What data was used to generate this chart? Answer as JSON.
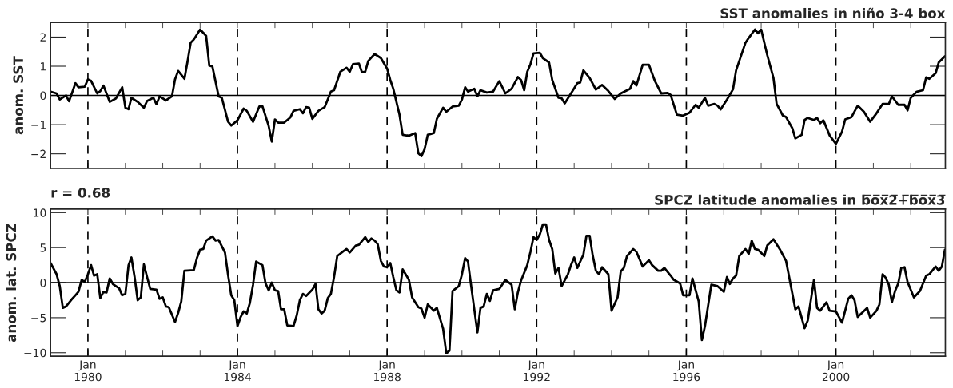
{
  "chart_data": [
    {
      "type": "line",
      "title": "SST anomalies in niño 3-4 box",
      "ylabel": "anom. SST",
      "x": [
        "1979-01",
        "1979-03",
        "1979-04",
        "1979-06",
        "1979-07",
        "1979-09",
        "1979-10",
        "1979-12",
        "1980-01",
        "1980-02",
        "1980-04",
        "1980-05",
        "1980-06",
        "1980-08",
        "1980-10",
        "1980-12",
        "1981-01",
        "1981-02",
        "1981-03",
        "1981-05",
        "1981-07",
        "1981-08",
        "1981-10",
        "1981-11",
        "1981-12",
        "1982-02",
        "1982-04",
        "1982-05",
        "1982-06",
        "1982-08",
        "1982-09",
        "1982-10",
        "1982-11",
        "1983-01",
        "1983-03",
        "1983-04",
        "1983-05",
        "1983-07",
        "1983-08",
        "1983-10",
        "1983-11",
        "1984-01",
        "1984-03",
        "1984-04",
        "1984-06",
        "1984-08",
        "1984-09",
        "1984-11",
        "1984-12",
        "1985-01",
        "1985-02",
        "1985-04",
        "1985-06",
        "1985-07",
        "1985-09",
        "1985-10",
        "1985-11",
        "1985-12",
        "1986-01",
        "1986-03",
        "1986-05",
        "1986-07",
        "1986-08",
        "1986-10",
        "1986-12",
        "1987-01",
        "1987-02",
        "1987-04",
        "1987-05",
        "1987-06",
        "1987-07",
        "1987-09",
        "1987-11",
        "1988-01",
        "1988-02",
        "1988-03",
        "1988-05",
        "1988-06",
        "1988-08",
        "1988-10",
        "1988-11",
        "1988-12",
        "1989-01",
        "1989-02",
        "1989-04",
        "1989-05",
        "1989-07",
        "1989-08",
        "1989-10",
        "1989-12",
        "1990-01",
        "1990-02",
        "1990-03",
        "1990-05",
        "1990-06",
        "1990-07",
        "1990-09",
        "1990-11",
        "1991-01",
        "1991-03",
        "1991-05",
        "1991-07",
        "1991-08",
        "1991-09",
        "1991-10",
        "1991-11",
        "1991-12",
        "1992-02",
        "1992-03",
        "1992-05",
        "1992-06",
        "1992-08",
        "1992-09",
        "1992-10",
        "1992-12",
        "1993-02",
        "1993-03",
        "1993-04",
        "1993-06",
        "1993-08",
        "1993-10",
        "1993-12",
        "1994-02",
        "1994-04",
        "1994-07",
        "1994-08",
        "1994-09",
        "1994-11",
        "1995-01",
        "1995-03",
        "1995-05",
        "1995-07",
        "1995-08",
        "1995-10",
        "1995-12",
        "1996-02",
        "1996-04",
        "1996-05",
        "1996-07",
        "1996-08",
        "1996-10",
        "1996-11",
        "1996-12",
        "1997-02",
        "1997-04",
        "1997-05",
        "1997-08",
        "1997-09",
        "1997-11",
        "1997-12",
        "1998-01",
        "1998-03",
        "1998-05",
        "1998-06",
        "1998-08",
        "1998-09",
        "1998-11",
        "1998-12",
        "1999-02",
        "1999-03",
        "1999-04",
        "1999-06",
        "1999-07",
        "1999-08",
        "1999-09",
        "1999-11",
        "2000-01",
        "2000-03",
        "2000-04",
        "2000-06",
        "2000-08",
        "2000-10",
        "2000-12",
        "2001-02",
        "2001-04",
        "2001-06",
        "2001-07",
        "2001-09",
        "2001-11",
        "2001-12",
        "2002-01",
        "2002-03",
        "2002-05",
        "2002-06",
        "2002-07",
        "2002-09",
        "2002-10",
        "2002-12"
      ],
      "series": [
        {
          "color": "#000000",
          "values": [
            0.13,
            0.07,
            -0.14,
            0,
            -0.2,
            0.42,
            0.28,
            0.3,
            0.55,
            0.5,
            0.07,
            0.15,
            0.34,
            -0.22,
            -0.1,
            0.28,
            -0.42,
            -0.47,
            -0.08,
            -0.22,
            -0.42,
            -0.19,
            -0.08,
            -0.3,
            -0.03,
            -0.17,
            -0.03,
            0.55,
            0.84,
            0.57,
            1.18,
            1.81,
            1.92,
            2.26,
            2.04,
            1.02,
            0.99,
            -0.03,
            -0.08,
            -0.9,
            -1.03,
            -0.85,
            -0.45,
            -0.53,
            -0.9,
            -0.38,
            -0.37,
            -1.05,
            -1.58,
            -0.82,
            -0.93,
            -0.93,
            -0.75,
            -0.53,
            -0.47,
            -0.61,
            -0.4,
            -0.42,
            -0.8,
            -0.53,
            -0.4,
            0.13,
            0.18,
            0.81,
            0.95,
            0.81,
            1.07,
            1.09,
            0.79,
            0.81,
            1.18,
            1.42,
            1.28,
            0.92,
            0.53,
            0.23,
            -0.66,
            -1.35,
            -1.38,
            -1.29,
            -1.98,
            -2.08,
            -1.84,
            -1.35,
            -1.29,
            -0.8,
            -0.42,
            -0.56,
            -0.38,
            -0.35,
            -0.14,
            0.28,
            0.13,
            0.23,
            -0.03,
            0.18,
            0.1,
            0.13,
            0.49,
            0.07,
            0.23,
            0.63,
            0.53,
            0.18,
            0.81,
            1.07,
            1.44,
            1.46,
            1.28,
            1.13,
            0.53,
            -0.08,
            -0.1,
            -0.27,
            0.07,
            0.42,
            0.44,
            0.86,
            0.6,
            0.2,
            0.36,
            0.15,
            -0.12,
            0.07,
            0.23,
            0.49,
            0.34,
            1.05,
            1.05,
            0.49,
            0.07,
            0.09,
            0.02,
            -0.66,
            -0.69,
            -0.59,
            -0.32,
            -0.42,
            -0.08,
            -0.35,
            -0.29,
            -0.35,
            -0.48,
            -0.14,
            0.21,
            0.86,
            1.81,
            1.97,
            2.26,
            2.13,
            2.26,
            1.39,
            0.6,
            -0.29,
            -0.69,
            -0.74,
            -1.12,
            -1.47,
            -1.35,
            -0.84,
            -0.77,
            -0.84,
            -0.77,
            -0.95,
            -0.85,
            -1.37,
            -1.66,
            -1.24,
            -0.82,
            -0.74,
            -0.35,
            -0.56,
            -0.9,
            -0.61,
            -0.29,
            -0.29,
            -0.03,
            -0.32,
            -0.32,
            -0.51,
            -0.08,
            0.13,
            0.18,
            0.62,
            0.57,
            0.76,
            1.13,
            1.34
          ]
        }
      ],
      "xlim": [
        "1979-01-01",
        "2002-12-05"
      ],
      "ylim": [
        -2.5,
        2.5
      ],
      "xticks": [
        {
          "value": "1979-01",
          "label": null
        },
        {
          "value": "1980-01",
          "label": null
        },
        {
          "value": "1981-01",
          "label": null
        },
        {
          "value": "1982-01",
          "label": null
        },
        {
          "value": "1983-01",
          "label": null
        },
        {
          "value": "1984-01",
          "label": null
        },
        {
          "value": "1985-01",
          "label": null
        },
        {
          "value": "1986-01",
          "label": null
        },
        {
          "value": "1987-01",
          "label": null
        },
        {
          "value": "1988-01",
          "label": null
        },
        {
          "value": "1989-01",
          "label": null
        },
        {
          "value": "1990-01",
          "label": null
        },
        {
          "value": "1991-01",
          "label": null
        },
        {
          "value": "1992-01",
          "label": null
        },
        {
          "value": "1993-01",
          "label": null
        },
        {
          "value": "1994-01",
          "label": null
        },
        {
          "value": "1995-01",
          "label": null
        },
        {
          "value": "1996-01",
          "label": null
        },
        {
          "value": "1997-01",
          "label": null
        },
        {
          "value": "1998-01",
          "label": null
        },
        {
          "value": "1999-01",
          "label": null
        },
        {
          "value": "2000-01",
          "label": null
        },
        {
          "value": "2001-01",
          "label": null
        },
        {
          "value": "2002-01",
          "label": null
        }
      ],
      "yticks": [
        {
          "value": -2,
          "label": "−2"
        },
        {
          "value": -1,
          "label": "−1"
        },
        0,
        1,
        2
      ],
      "tick_labels": "y",
      "ref_lines": [
        {
          "axis": "y",
          "value": 0,
          "line_style": "solid"
        },
        {
          "axis": "x",
          "value": "1980-01",
          "line_style": "dashed"
        },
        {
          "axis": "x",
          "value": "1984-01",
          "line_style": "dashed"
        },
        {
          "axis": "x",
          "value": "1988-01",
          "line_style": "dashed"
        },
        {
          "axis": "x",
          "value": "1992-01",
          "line_style": "dashed"
        },
        {
          "axis": "x",
          "value": "1996-01",
          "line_style": "dashed"
        },
        {
          "axis": "x",
          "value": "2000-01",
          "line_style": "dashed"
        }
      ]
    },
    {
      "type": "line",
      "title": "SPCZ latitude anomalies in b̅o̅x̅2̅+̅b̅o̅x̅3̅",
      "ylabel": "anom. lat. SPCZ",
      "annotations": [
        "r = 0.68"
      ],
      "x": [
        "1979-01",
        "1979-03",
        "1979-04",
        "1979-05",
        "1979-06",
        "1979-08",
        "1979-09",
        "1979-10",
        "1979-11",
        "1979-12",
        "1980-01",
        "1980-02",
        "1980-03",
        "1980-04",
        "1980-05",
        "1980-06",
        "1980-07",
        "1980-08",
        "1980-09",
        "1980-11",
        "1980-12",
        "1981-01",
        "1981-02",
        "1981-03",
        "1981-04",
        "1981-05",
        "1981-06",
        "1981-07",
        "1981-08",
        "1981-09",
        "1981-11",
        "1981-12",
        "1982-01",
        "1982-02",
        "1982-03",
        "1982-05",
        "1982-06",
        "1982-07",
        "1982-08",
        "1982-11",
        "1982-12",
        "1983-01",
        "1983-02",
        "1983-03",
        "1983-05",
        "1983-06",
        "1983-07",
        "1983-09",
        "1983-10",
        "1983-11",
        "1983-12",
        "1984-01",
        "1984-02",
        "1984-03",
        "1984-04",
        "1984-05",
        "1984-06",
        "1984-07",
        "1984-09",
        "1984-10",
        "1984-11",
        "1984-12",
        "1985-01",
        "1985-02",
        "1985-03",
        "1985-04",
        "1985-05",
        "1985-07",
        "1985-08",
        "1985-09",
        "1985-10",
        "1985-11",
        "1986-01",
        "1986-02",
        "1986-03",
        "1986-04",
        "1986-05",
        "1986-06",
        "1986-07",
        "1986-08",
        "1986-09",
        "1986-11",
        "1986-12",
        "1987-01",
        "1987-03",
        "1987-04",
        "1987-06",
        "1987-07",
        "1987-08",
        "1987-09",
        "1987-10",
        "1987-11",
        "1987-12",
        "1988-01",
        "1988-02",
        "1988-03",
        "1988-04",
        "1988-05",
        "1988-06",
        "1988-08",
        "1988-09",
        "1988-11",
        "1988-12",
        "1989-01",
        "1989-02",
        "1989-04",
        "1989-05",
        "1989-07",
        "1989-08",
        "1989-09",
        "1989-10",
        "1989-12",
        "1990-01",
        "1990-02",
        "1990-03",
        "1990-04",
        "1990-06",
        "1990-07",
        "1990-08",
        "1990-09",
        "1990-10",
        "1990-11",
        "1991-01",
        "1991-03",
        "1991-05",
        "1991-06",
        "1991-07",
        "1991-08",
        "1991-10",
        "1991-11",
        "1991-12",
        "1992-01",
        "1992-02",
        "1992-03",
        "1992-04",
        "1992-05",
        "1992-06",
        "1992-07",
        "1992-08",
        "1992-09",
        "1992-11",
        "1992-12",
        "1993-01",
        "1993-02",
        "1993-04",
        "1993-05",
        "1993-06",
        "1993-07",
        "1993-08",
        "1993-09",
        "1993-10",
        "1993-12",
        "1994-01",
        "1994-03",
        "1994-04",
        "1994-05",
        "1994-06",
        "1994-08",
        "1994-09",
        "1994-11",
        "1995-01",
        "1995-02",
        "1995-04",
        "1995-05",
        "1995-06",
        "1995-08",
        "1995-09",
        "1995-11",
        "1995-12",
        "1996-02",
        "1996-03",
        "1996-05",
        "1996-06",
        "1996-07",
        "1996-09",
        "1996-11",
        "1997-01",
        "1997-02",
        "1997-03",
        "1997-04",
        "1997-05",
        "1997-06",
        "1997-08",
        "1997-09",
        "1997-10",
        "1997-11",
        "1997-12",
        "1998-02",
        "1998-03",
        "1998-05",
        "1998-07",
        "1998-09",
        "1998-12",
        "1999-01",
        "1999-03",
        "1999-04",
        "1999-06",
        "1999-07",
        "1999-08",
        "1999-10",
        "1999-11",
        "2000-01",
        "2000-03",
        "2000-05",
        "2000-06",
        "2000-07",
        "2000-08",
        "2000-11",
        "2000-12",
        "2001-02",
        "2001-03",
        "2001-04",
        "2001-05",
        "2001-06",
        "2001-07",
        "2001-08",
        "2001-09",
        "2001-10",
        "2001-11",
        "2001-12",
        "2002-02",
        "2002-04",
        "2002-06",
        "2002-07",
        "2002-09",
        "2002-10",
        "2002-11",
        "2002-12"
      ],
      "series": [
        {
          "color": "#000000",
          "values": [
            2.8,
            1.2,
            -0.5,
            -3.6,
            -3.4,
            -2.3,
            -1.8,
            -1.3,
            0.4,
            0.1,
            1.2,
            2.5,
            1.0,
            1.2,
            -2.2,
            -1.3,
            -1.4,
            0.6,
            -0.2,
            -0.8,
            -1.8,
            -1.6,
            2.5,
            3.6,
            0.8,
            -2.5,
            -2.1,
            2.6,
            0.8,
            -0.9,
            -1.0,
            -2.3,
            -2.1,
            -3.4,
            -3.5,
            -5.6,
            -4.3,
            -2.7,
            1.7,
            1.8,
            3.5,
            4.7,
            4.8,
            6.0,
            6.6,
            6.0,
            6.1,
            4.3,
            1.1,
            -1.8,
            -2.5,
            -6.2,
            -4.9,
            -4.1,
            -4.4,
            -2.9,
            -0.3,
            3.0,
            2.5,
            -0.1,
            -1.1,
            0,
            -1.1,
            -1.2,
            -3.8,
            -3.8,
            -6.1,
            -6.2,
            -4.7,
            -2.5,
            -1.6,
            -1.9,
            -1.0,
            -0.2,
            -3.8,
            -4.4,
            -4.0,
            -2.2,
            -1.6,
            0.8,
            3.8,
            4.5,
            4.8,
            4.3,
            5.3,
            5.4,
            6.5,
            5.8,
            6.3,
            6.0,
            5.5,
            3.1,
            2.3,
            2.2,
            2.8,
            0.8,
            -1.1,
            -1.4,
            1.9,
            0.4,
            -2.1,
            -3.5,
            -3.7,
            -5.0,
            -3.1,
            -4.0,
            -3.6,
            -6.6,
            -10.1,
            -9.7,
            -1.2,
            -0.5,
            1.2,
            3.5,
            3.0,
            -0.5,
            -7.1,
            -3.6,
            -3.4,
            -1.6,
            -2.6,
            -1.1,
            -0.9,
            0.4,
            -0.3,
            -3.8,
            -1.4,
            0.3,
            2.5,
            4.4,
            6.5,
            6.1,
            6.9,
            8.3,
            8.3,
            6.1,
            4.8,
            1.3,
            2.1,
            -0.5,
            1.2,
            2.5,
            3.6,
            2.1,
            4.0,
            6.7,
            6.7,
            3.9,
            1.7,
            1.2,
            2.2,
            1.2,
            -4.0,
            -2.1,
            1.6,
            2.1,
            3.8,
            4.8,
            4.4,
            2.3,
            3.2,
            2.5,
            1.7,
            1.7,
            2.1,
            1.0,
            0.4,
            -0.1,
            -1.8,
            -1.8,
            0.6,
            -2.7,
            -8.2,
            -6.2,
            -0.3,
            -0.5,
            -1.3,
            0.8,
            -0.2,
            0.6,
            1.0,
            3.8,
            4.8,
            4.1,
            6.0,
            4.8,
            4.7,
            3.8,
            5.3,
            6.2,
            4.8,
            3.1,
            -3.8,
            -3.4,
            -6.5,
            -5.4,
            0.4,
            -3.6,
            -4.0,
            -2.8,
            -4.0,
            -4.1,
            -5.7,
            -2.3,
            -1.8,
            -2.5,
            -4.9,
            -3.6,
            -5.0,
            -4.0,
            -3.1,
            1.2,
            0.7,
            -0.3,
            -2.8,
            -1.2,
            -0.1,
            2.1,
            2.2,
            0.1,
            -2.1,
            -1.2,
            1.0,
            1.2,
            2.3,
            1.7,
            2.3,
            4.7
          ]
        }
      ],
      "xlim": [
        "1979-01-01",
        "2002-12-05"
      ],
      "ylim": [
        -10.5,
        10.5
      ],
      "xticks": [
        {
          "value": "1979-01",
          "label": null
        },
        {
          "value": "1980-01",
          "label": "Jan\n1980"
        },
        {
          "value": "1981-01",
          "label": null
        },
        {
          "value": "1982-01",
          "label": null
        },
        {
          "value": "1983-01",
          "label": null
        },
        {
          "value": "1984-01",
          "label": "Jan\n1984"
        },
        {
          "value": "1985-01",
          "label": null
        },
        {
          "value": "1986-01",
          "label": null
        },
        {
          "value": "1987-01",
          "label": null
        },
        {
          "value": "1988-01",
          "label": "Jan\n1988"
        },
        {
          "value": "1989-01",
          "label": null
        },
        {
          "value": "1990-01",
          "label": null
        },
        {
          "value": "1991-01",
          "label": null
        },
        {
          "value": "1992-01",
          "label": "Jan\n1992"
        },
        {
          "value": "1993-01",
          "label": null
        },
        {
          "value": "1994-01",
          "label": null
        },
        {
          "value": "1995-01",
          "label": null
        },
        {
          "value": "1996-01",
          "label": "Jan\n1996"
        },
        {
          "value": "1997-01",
          "label": null
        },
        {
          "value": "1998-01",
          "label": null
        },
        {
          "value": "1999-01",
          "label": null
        },
        {
          "value": "2000-01",
          "label": "Jan\n2000"
        },
        {
          "value": "2001-01",
          "label": null
        },
        {
          "value": "2002-01",
          "label": null
        }
      ],
      "yticks": [
        {
          "value": -10,
          "label": "−10"
        },
        {
          "value": -5,
          "label": "−5"
        },
        0,
        5,
        10
      ],
      "ref_lines": [
        {
          "axis": "y",
          "value": 0,
          "line_style": "solid"
        },
        {
          "axis": "x",
          "value": "1980-01",
          "line_style": "dashed"
        },
        {
          "axis": "x",
          "value": "1984-01",
          "line_style": "dashed"
        },
        {
          "axis": "x",
          "value": "1988-01",
          "line_style": "dashed"
        },
        {
          "axis": "x",
          "value": "1992-01",
          "line_style": "dashed"
        },
        {
          "axis": "x",
          "value": "1996-01",
          "line_style": "dashed"
        },
        {
          "axis": "x",
          "value": "2000-01",
          "line_style": "dashed"
        }
      ]
    }
  ]
}
